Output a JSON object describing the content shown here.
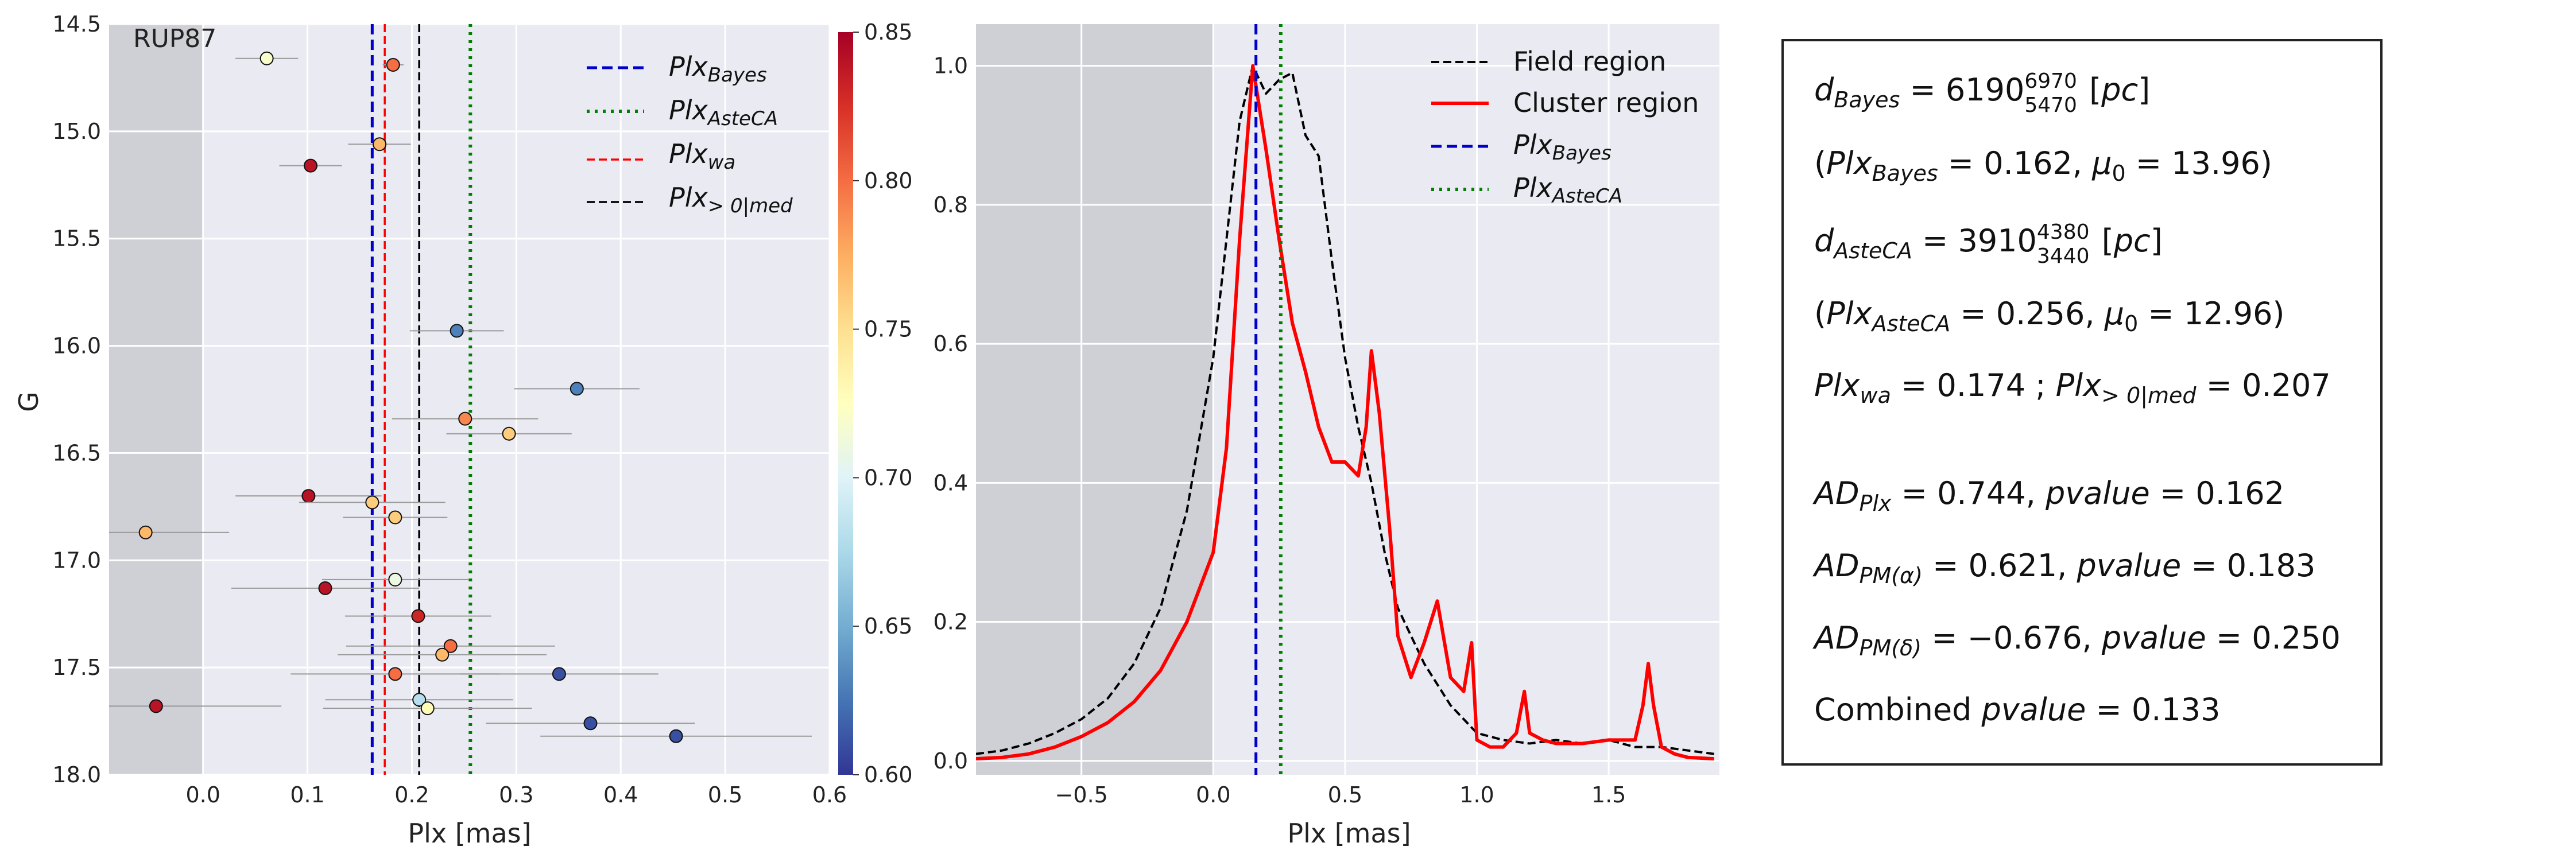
{
  "chart_data": [
    {
      "type": "scatter",
      "cluster_label": "RUP87",
      "xlabel": "Plx [mas]",
      "ylabel": "G",
      "xlim": [
        -0.09,
        0.6
      ],
      "ylim": [
        18.0,
        14.5
      ],
      "y_inverted": true,
      "x_ticks": [
        0.0,
        0.1,
        0.2,
        0.3,
        0.4,
        0.5,
        0.6
      ],
      "x_tick_labels": [
        "0.0",
        "0.1",
        "0.2",
        "0.3",
        "0.4",
        "0.5",
        "0.6"
      ],
      "y_ticks": [
        14.5,
        15.0,
        15.5,
        16.0,
        16.5,
        17.0,
        17.5,
        18.0
      ],
      "y_tick_labels": [
        "14.5",
        "15.0",
        "15.5",
        "16.0",
        "16.5",
        "17.0",
        "17.5",
        "18.0"
      ],
      "grid": true,
      "shaded_region_x": [
        -0.09,
        0.0
      ],
      "vlines": [
        {
          "key": "bayes",
          "x": 0.162,
          "color": "#0000cc",
          "style": "dashed"
        },
        {
          "key": "asteca",
          "x": 0.256,
          "color": "#008000",
          "style": "dotted"
        },
        {
          "key": "wa",
          "x": 0.174,
          "color": "#ff0000",
          "style": "dashed"
        },
        {
          "key": "med",
          "x": 0.207,
          "color": "#000000",
          "style": "dashed"
        }
      ],
      "colorbar": {
        "min": 0.6,
        "max": 0.85,
        "ticks": [
          0.6,
          0.65,
          0.7,
          0.75,
          0.8,
          0.85
        ],
        "tick_labels": [
          "0.60",
          "0.65",
          "0.70",
          "0.75",
          "0.80",
          "0.85"
        ],
        "colormap": "RdYlBu_r"
      },
      "points": [
        {
          "x": 0.061,
          "y": 14.66,
          "xerr": 0.03,
          "c": 0.72
        },
        {
          "x": 0.182,
          "y": 14.69,
          "xerr": 0.01,
          "c": 0.8
        },
        {
          "x": 0.169,
          "y": 15.06,
          "xerr": 0.03,
          "c": 0.77
        },
        {
          "x": 0.103,
          "y": 15.16,
          "xerr": 0.03,
          "c": 0.84
        },
        {
          "x": 0.243,
          "y": 15.93,
          "xerr": 0.045,
          "c": 0.63
        },
        {
          "x": 0.358,
          "y": 16.2,
          "xerr": 0.06,
          "c": 0.63
        },
        {
          "x": 0.251,
          "y": 16.34,
          "xerr": 0.07,
          "c": 0.79
        },
        {
          "x": 0.293,
          "y": 16.41,
          "xerr": 0.06,
          "c": 0.76
        },
        {
          "x": 0.101,
          "y": 16.7,
          "xerr": 0.07,
          "c": 0.84
        },
        {
          "x": 0.162,
          "y": 16.73,
          "xerr": 0.07,
          "c": 0.76
        },
        {
          "x": 0.184,
          "y": 16.8,
          "xerr": 0.05,
          "c": 0.76
        },
        {
          "x": -0.055,
          "y": 16.87,
          "xerr": 0.08,
          "c": 0.77
        },
        {
          "x": 0.184,
          "y": 17.09,
          "xerr": 0.07,
          "c": 0.71
        },
        {
          "x": 0.117,
          "y": 17.13,
          "xerr": 0.09,
          "c": 0.84
        },
        {
          "x": 0.206,
          "y": 17.26,
          "xerr": 0.07,
          "c": 0.83
        },
        {
          "x": 0.237,
          "y": 17.4,
          "xerr": 0.1,
          "c": 0.8
        },
        {
          "x": 0.229,
          "y": 17.44,
          "xerr": 0.1,
          "c": 0.77
        },
        {
          "x": 0.184,
          "y": 17.53,
          "xerr": 0.1,
          "c": 0.8
        },
        {
          "x": 0.341,
          "y": 17.53,
          "xerr": 0.095,
          "c": 0.61
        },
        {
          "x": 0.207,
          "y": 17.65,
          "xerr": 0.09,
          "c": 0.68
        },
        {
          "x": 0.215,
          "y": 17.69,
          "xerr": 0.1,
          "c": 0.73
        },
        {
          "x": -0.045,
          "y": 17.68,
          "xerr": 0.12,
          "c": 0.84
        },
        {
          "x": 0.371,
          "y": 17.76,
          "xerr": 0.1,
          "c": 0.61
        },
        {
          "x": 0.453,
          "y": 17.82,
          "xerr": 0.13,
          "c": 0.61
        }
      ]
    },
    {
      "type": "line",
      "xlabel": "Plx [mas]",
      "ylabel": "",
      "xlim": [
        -0.9,
        1.92
      ],
      "ylim": [
        -0.02,
        1.06
      ],
      "x_ticks": [
        -0.5,
        0.0,
        0.5,
        1.0,
        1.5
      ],
      "x_tick_labels": [
        "−0.5",
        "0.0",
        "0.5",
        "1.0",
        "1.5"
      ],
      "y_ticks": [
        0.0,
        0.2,
        0.4,
        0.6,
        0.8,
        1.0
      ],
      "y_tick_labels": [
        "0.0",
        "0.2",
        "0.4",
        "0.6",
        "0.8",
        "1.0"
      ],
      "grid": true,
      "shaded_region_x": [
        -0.9,
        0.0
      ],
      "vlines": [
        {
          "key": "bayes",
          "x": 0.162,
          "color": "#0000cc",
          "style": "dashed"
        },
        {
          "key": "asteca",
          "x": 0.256,
          "color": "#008000",
          "style": "dotted"
        }
      ],
      "series": [
        {
          "name": "Field region",
          "color": "#000000",
          "style": "dashed",
          "x": [
            -0.9,
            -0.8,
            -0.7,
            -0.6,
            -0.5,
            -0.4,
            -0.3,
            -0.2,
            -0.1,
            0.0,
            0.05,
            0.1,
            0.15,
            0.2,
            0.25,
            0.3,
            0.35,
            0.4,
            0.45,
            0.5,
            0.55,
            0.6,
            0.65,
            0.7,
            0.8,
            0.9,
            1.0,
            1.1,
            1.2,
            1.3,
            1.4,
            1.5,
            1.6,
            1.7,
            1.8,
            1.9
          ],
          "y": [
            0.01,
            0.015,
            0.025,
            0.04,
            0.06,
            0.09,
            0.14,
            0.22,
            0.36,
            0.58,
            0.75,
            0.92,
            1.0,
            0.96,
            0.98,
            0.99,
            0.9,
            0.87,
            0.72,
            0.58,
            0.48,
            0.4,
            0.3,
            0.22,
            0.14,
            0.08,
            0.04,
            0.03,
            0.025,
            0.03,
            0.025,
            0.03,
            0.02,
            0.02,
            0.015,
            0.01
          ]
        },
        {
          "name": "Cluster region",
          "color": "#ff0000",
          "style": "solid",
          "x": [
            -0.9,
            -0.8,
            -0.7,
            -0.6,
            -0.5,
            -0.4,
            -0.3,
            -0.2,
            -0.1,
            0.0,
            0.05,
            0.1,
            0.15,
            0.2,
            0.25,
            0.3,
            0.35,
            0.4,
            0.45,
            0.5,
            0.55,
            0.58,
            0.6,
            0.63,
            0.67,
            0.7,
            0.75,
            0.8,
            0.85,
            0.9,
            0.95,
            0.98,
            1.0,
            1.05,
            1.1,
            1.15,
            1.18,
            1.2,
            1.25,
            1.3,
            1.4,
            1.5,
            1.6,
            1.63,
            1.65,
            1.67,
            1.7,
            1.75,
            1.8,
            1.9
          ],
          "y": [
            0.003,
            0.005,
            0.01,
            0.02,
            0.035,
            0.055,
            0.085,
            0.13,
            0.2,
            0.3,
            0.45,
            0.75,
            1.0,
            0.88,
            0.75,
            0.63,
            0.56,
            0.48,
            0.43,
            0.43,
            0.41,
            0.48,
            0.59,
            0.5,
            0.33,
            0.18,
            0.12,
            0.17,
            0.23,
            0.12,
            0.1,
            0.17,
            0.03,
            0.02,
            0.02,
            0.04,
            0.1,
            0.04,
            0.03,
            0.025,
            0.025,
            0.03,
            0.03,
            0.08,
            0.14,
            0.08,
            0.02,
            0.01,
            0.005,
            0.003
          ]
        }
      ]
    }
  ],
  "legend_left": {
    "bayes_base": "Plx",
    "bayes_sub": "Bayes",
    "asteca_base": "Plx",
    "asteca_sub": "AsteCA",
    "wa_base": "Plx",
    "wa_sub": "wa",
    "med_base": "Plx",
    "med_sub": "> 0|med"
  },
  "legend_right": {
    "field": "Field region",
    "cluster": "Cluster region",
    "bayes_base": "Plx",
    "bayes_sub": "Bayes",
    "asteca_base": "Plx",
    "asteca_sub": "AsteCA"
  },
  "textbox": {
    "l1": {
      "a": "d",
      "a_sub": "Bayes",
      "b": " = 6190",
      "sup": "6970",
      "sub": "5470",
      "c": " [",
      "unit": "pc",
      "d": "]"
    },
    "l2": {
      "a": "(",
      "b": "Plx",
      "b_sub": "Bayes",
      "c": " = 0.162, ",
      "mu": "μ",
      "mu_sub": "0",
      "d": " = 13.96)"
    },
    "l3": {
      "a": "d",
      "a_sub": "AsteCA",
      "b": " = 3910",
      "sup": "4380",
      "sub": "3440",
      "c": " [",
      "unit": "pc",
      "d": "]"
    },
    "l4": {
      "a": "(",
      "b": "Plx",
      "b_sub": "AsteCA",
      "c": " = 0.256, ",
      "mu": "μ",
      "mu_sub": "0",
      "d": " = 12.96)"
    },
    "l5": {
      "a": "Plx",
      "a_sub": "wa",
      "b": " = 0.174 ; ",
      "c": "Plx",
      "c_sub": "> 0|med",
      "d": " = 0.207"
    },
    "l6": {
      "a": "AD",
      "a_sub": "Plx",
      "b": " = 0.744, ",
      "c": "pvalue",
      "d": " = 0.162"
    },
    "l7": {
      "a": "AD",
      "a_sub": "PM(α)",
      "b": " = 0.621, ",
      "c": "pvalue",
      "d": " = 0.183"
    },
    "l8": {
      "a": "AD",
      "a_sub": "PM(δ)",
      "b": " = −0.676, ",
      "c": "pvalue",
      "d": " = 0.250"
    },
    "l9": {
      "a": "Combined ",
      "c": "pvalue",
      "d": " = 0.133"
    }
  }
}
